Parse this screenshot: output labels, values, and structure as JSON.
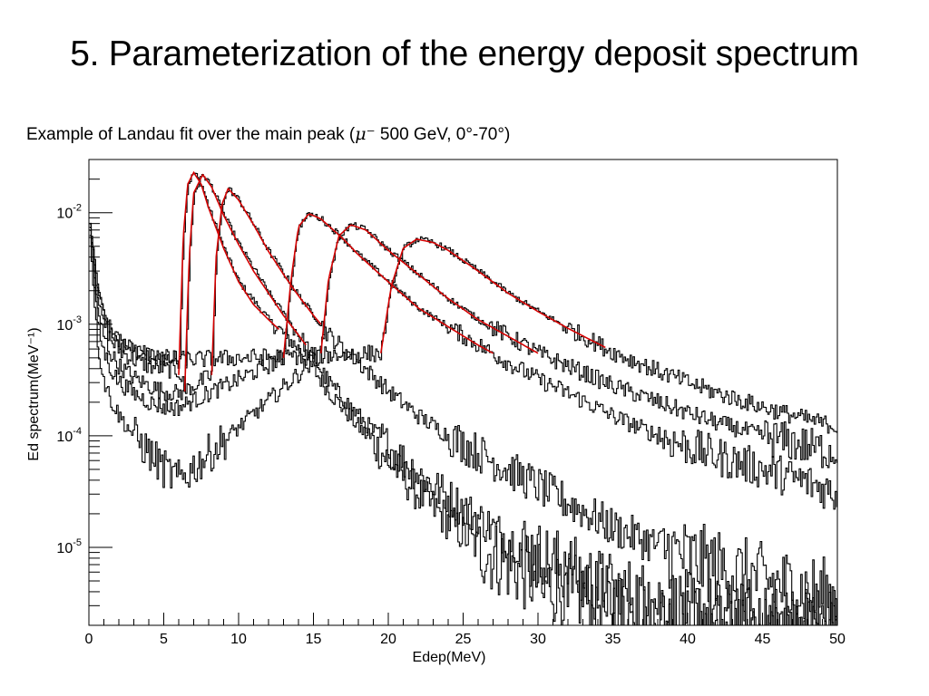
{
  "slide": {
    "title": "5. Parameterization of the energy deposit spectrum",
    "subtitle_prefix": "Example of Landau fit over the main peak (",
    "subtitle_particle": "μ⁻",
    "subtitle_suffix": " 500 GeV, 0°-70°)"
  },
  "chart_data": {
    "type": "line",
    "title": "",
    "xlabel": "Edep(MeV)",
    "ylabel": "Ed spectrum(MeV⁻¹)",
    "xlim": [
      0,
      50
    ],
    "ylim": [
      2e-06,
      0.03
    ],
    "ylog": true,
    "grid": false,
    "x_ticks": [
      0,
      5,
      10,
      15,
      20,
      25,
      30,
      35,
      40,
      45,
      50
    ],
    "y_ticks": [
      {
        "value": 0.01,
        "base": "10",
        "exp": "-2"
      },
      {
        "value": 0.001,
        "base": "10",
        "exp": "-3"
      },
      {
        "value": 0.0001,
        "base": "10",
        "exp": "-4"
      },
      {
        "value": 1e-05,
        "base": "10",
        "exp": "-5"
      }
    ],
    "colors": {
      "histogram": "#000000",
      "fit": "#d40000"
    },
    "series": [
      {
        "kind": "histogram",
        "peak_x": 7.0,
        "peak_y": 0.023,
        "x": [
          6.0,
          6.3,
          6.6,
          7.0,
          7.5,
          8,
          9,
          10,
          12,
          14,
          16,
          18,
          20,
          22,
          24,
          26,
          28,
          30,
          35,
          40,
          45,
          50
        ],
        "y": [
          0.00035,
          0.006,
          0.018,
          0.023,
          0.018,
          0.011,
          0.0048,
          0.0024,
          0.0011,
          0.0006,
          0.00025,
          0.00012,
          6e-05,
          3e-05,
          1.7e-05,
          1e-05,
          7e-06,
          5e-06,
          3e-06,
          2e-06,
          2e-06,
          2e-06
        ]
      },
      {
        "kind": "histogram",
        "peak_x": 7.6,
        "peak_y": 0.022,
        "x": [
          6.4,
          6.7,
          7.0,
          7.6,
          8.2,
          9,
          10,
          12,
          14,
          16,
          18,
          20,
          22,
          24,
          26,
          28,
          30,
          35,
          40,
          45,
          50
        ],
        "y": [
          0.00025,
          0.004,
          0.015,
          0.022,
          0.017,
          0.0095,
          0.0052,
          0.0019,
          0.0008,
          0.0003,
          0.00015,
          8e-05,
          4.5e-05,
          2.8e-05,
          1.8e-05,
          1.2e-05,
          8e-06,
          4e-06,
          2.8e-06,
          2e-06,
          2e-06
        ]
      },
      {
        "kind": "histogram",
        "peak_x": 9.3,
        "peak_y": 0.0165,
        "x": [
          8.2,
          8.5,
          8.9,
          9.3,
          10,
          11,
          12,
          14,
          16,
          18,
          20,
          22,
          24,
          26,
          28,
          30,
          32,
          35,
          40,
          45,
          50
        ],
        "y": [
          0.00035,
          0.004,
          0.012,
          0.0165,
          0.013,
          0.0078,
          0.0045,
          0.0018,
          0.0008,
          0.00045,
          0.00025,
          0.00015,
          0.0001,
          7e-05,
          5e-05,
          3.5e-05,
          2.5e-05,
          1.5e-05,
          8e-06,
          5e-06,
          3.5e-06
        ]
      },
      {
        "kind": "histogram",
        "peak_x": 14.7,
        "peak_y": 0.0098,
        "x": [
          13.0,
          13.5,
          14.0,
          14.7,
          15.5,
          17,
          18,
          20,
          22,
          24,
          26,
          28,
          30,
          32,
          35,
          38,
          40,
          42,
          45,
          48,
          50
        ],
        "y": [
          0.0005,
          0.0025,
          0.0075,
          0.0098,
          0.0088,
          0.0058,
          0.0042,
          0.0024,
          0.0014,
          0.00095,
          0.00065,
          0.00045,
          0.00032,
          0.00024,
          0.00015,
          0.0001,
          8e-05,
          6.5e-05,
          5e-05,
          3.8e-05,
          3e-05
        ]
      },
      {
        "kind": "histogram",
        "peak_x": 17.5,
        "peak_y": 0.0078,
        "x": [
          15.5,
          16.0,
          16.7,
          17.5,
          18.5,
          20,
          22,
          24,
          26,
          28,
          30,
          32,
          35,
          38,
          40,
          42,
          45,
          48,
          50
        ],
        "y": [
          0.00055,
          0.0025,
          0.0062,
          0.0078,
          0.007,
          0.0046,
          0.0028,
          0.0017,
          0.0011,
          0.00078,
          0.00055,
          0.00042,
          0.00028,
          0.0002,
          0.00016,
          0.00013,
          0.0001,
          8e-05,
          7e-05
        ]
      },
      {
        "kind": "histogram",
        "peak_x": 21.9,
        "peak_y": 0.0058,
        "x": [
          19.5,
          20.2,
          21.0,
          21.9,
          23,
          24,
          26,
          28,
          30,
          32,
          34,
          35,
          38,
          40,
          42,
          45,
          48,
          50
        ],
        "y": [
          0.00055,
          0.0022,
          0.0048,
          0.0058,
          0.0054,
          0.0046,
          0.003,
          0.0019,
          0.0013,
          0.00092,
          0.00066,
          0.00056,
          0.00038,
          0.0003,
          0.00024,
          0.00018,
          0.00014,
          0.00012
        ]
      }
    ],
    "fits": [
      {
        "peak_x": 7.0,
        "peak_y": 0.023,
        "x": [
          6.0,
          6.3,
          6.6,
          7.0,
          7.5,
          8,
          9,
          10,
          11,
          12,
          12.7
        ],
        "y": [
          0.00035,
          0.006,
          0.018,
          0.023,
          0.018,
          0.011,
          0.0048,
          0.0024,
          0.0015,
          0.0011,
          0.0009
        ]
      },
      {
        "peak_x": 7.6,
        "peak_y": 0.022,
        "x": [
          6.4,
          6.7,
          7.0,
          7.6,
          8.2,
          9,
          10,
          11,
          12,
          13,
          14,
          14.5
        ],
        "y": [
          0.00025,
          0.004,
          0.015,
          0.022,
          0.017,
          0.0095,
          0.0052,
          0.003,
          0.0019,
          0.0012,
          0.0008,
          0.00065
        ]
      },
      {
        "peak_x": 9.3,
        "peak_y": 0.0165,
        "x": [
          8.2,
          8.5,
          8.9,
          9.3,
          10,
          11,
          12,
          13,
          14,
          15,
          15.5
        ],
        "y": [
          0.00035,
          0.004,
          0.012,
          0.0165,
          0.013,
          0.0078,
          0.0045,
          0.0028,
          0.0018,
          0.0012,
          0.001
        ]
      },
      {
        "peak_x": 14.7,
        "peak_y": 0.0098,
        "x": [
          13.0,
          13.5,
          14.0,
          14.7,
          15.5,
          17,
          18,
          20,
          22,
          24,
          26,
          27
        ],
        "y": [
          0.0005,
          0.0025,
          0.0075,
          0.0098,
          0.0088,
          0.0058,
          0.0042,
          0.0024,
          0.0014,
          0.00095,
          0.00065,
          0.00055
        ]
      },
      {
        "peak_x": 17.5,
        "peak_y": 0.0078,
        "x": [
          15.5,
          16.0,
          16.7,
          17.5,
          18.5,
          20,
          22,
          24,
          26,
          28,
          30
        ],
        "y": [
          0.00055,
          0.0025,
          0.0062,
          0.0078,
          0.007,
          0.0046,
          0.0028,
          0.0017,
          0.0011,
          0.00078,
          0.00055
        ]
      },
      {
        "peak_x": 21.9,
        "peak_y": 0.0058,
        "x": [
          19.5,
          20.2,
          21.0,
          21.9,
          23,
          24,
          26,
          28,
          30,
          32,
          34.5
        ],
        "y": [
          0.00055,
          0.0022,
          0.0048,
          0.0058,
          0.0054,
          0.0046,
          0.003,
          0.0019,
          0.0013,
          0.00092,
          0.00062
        ]
      }
    ],
    "low_energy": {
      "x": [
        0.0,
        0.3,
        0.6,
        1.0,
        1.5,
        2.0,
        3.0,
        4.0,
        5.0,
        6.0
      ],
      "y_sets": [
        [
          0.009,
          0.004,
          0.002,
          0.0012,
          0.00085,
          0.0007,
          0.00058,
          0.00052,
          0.0005,
          0.00048
        ],
        [
          0.009,
          0.0035,
          0.0016,
          0.001,
          0.0007,
          0.00058,
          0.00048,
          0.00042,
          0.0004,
          0.00038
        ],
        [
          0.009,
          0.003,
          0.0012,
          0.00075,
          0.00052,
          0.00042,
          0.00033,
          0.00028,
          0.00025,
          0.00024
        ],
        [
          0.009,
          0.0025,
          0.0009,
          0.00055,
          0.00038,
          0.0003,
          0.00024,
          0.0002,
          0.00018,
          0.00018
        ],
        [
          0.008,
          0.0018,
          0.0006,
          0.0003,
          0.0002,
          0.00015,
          0.0001,
          7e-05,
          5e-05,
          4e-05
        ]
      ]
    }
  }
}
